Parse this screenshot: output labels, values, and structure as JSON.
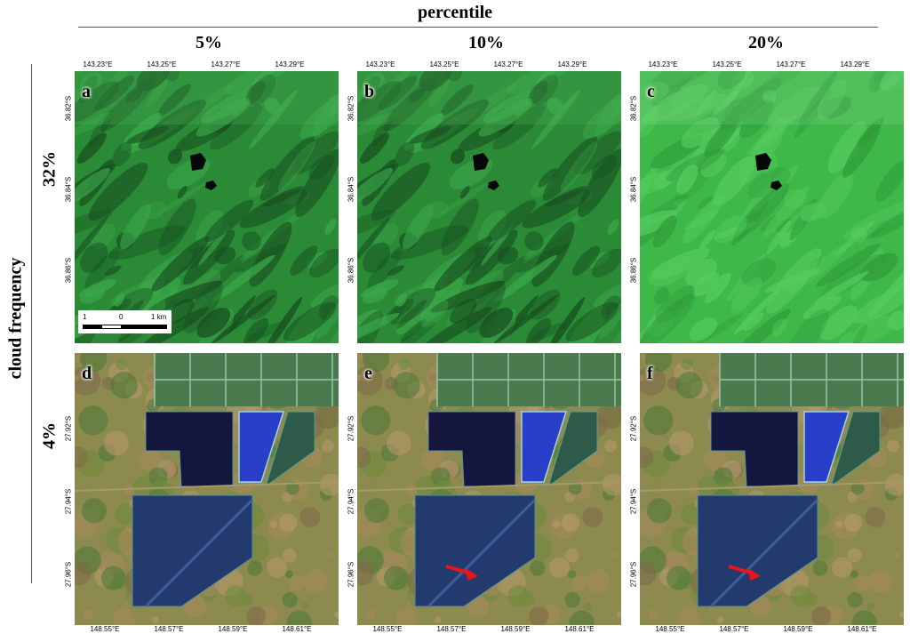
{
  "header": {
    "title": "percentile"
  },
  "columns": [
    "5%",
    "10%",
    "20%"
  ],
  "row_axis_label": "cloud frequency",
  "rows": [
    "32%",
    "4%"
  ],
  "panels": [
    {
      "label": "a",
      "scene": "forest",
      "brightness": "dark"
    },
    {
      "label": "b",
      "scene": "forest",
      "brightness": "dark"
    },
    {
      "label": "c",
      "scene": "forest",
      "brightness": "bright"
    },
    {
      "label": "d",
      "scene": "ponds",
      "arrow": false
    },
    {
      "label": "e",
      "scene": "ponds",
      "arrow": true
    },
    {
      "label": "f",
      "scene": "ponds",
      "arrow": true
    }
  ],
  "top_ticks": [
    "143.23°E",
    "143.25°E",
    "143.27°E",
    "143.29°E"
  ],
  "top_side_ticks": [
    "36.82°S",
    "36.84°S",
    "36.86°S"
  ],
  "bottom_ticks": [
    "148.55°E",
    "148.57°E",
    "148.59°E",
    "148.61°E"
  ],
  "bottom_side_ticks": [
    "27.92°S",
    "27.94°S",
    "27.96°S"
  ],
  "scalebar": {
    "left": "1",
    "mid": "0",
    "right": "1 km"
  },
  "colors": {
    "forest": "#2f9e3a",
    "pond_dark": "#15163d",
    "pond_blue": "#2a3fc8",
    "arrow": "#e8141a"
  }
}
